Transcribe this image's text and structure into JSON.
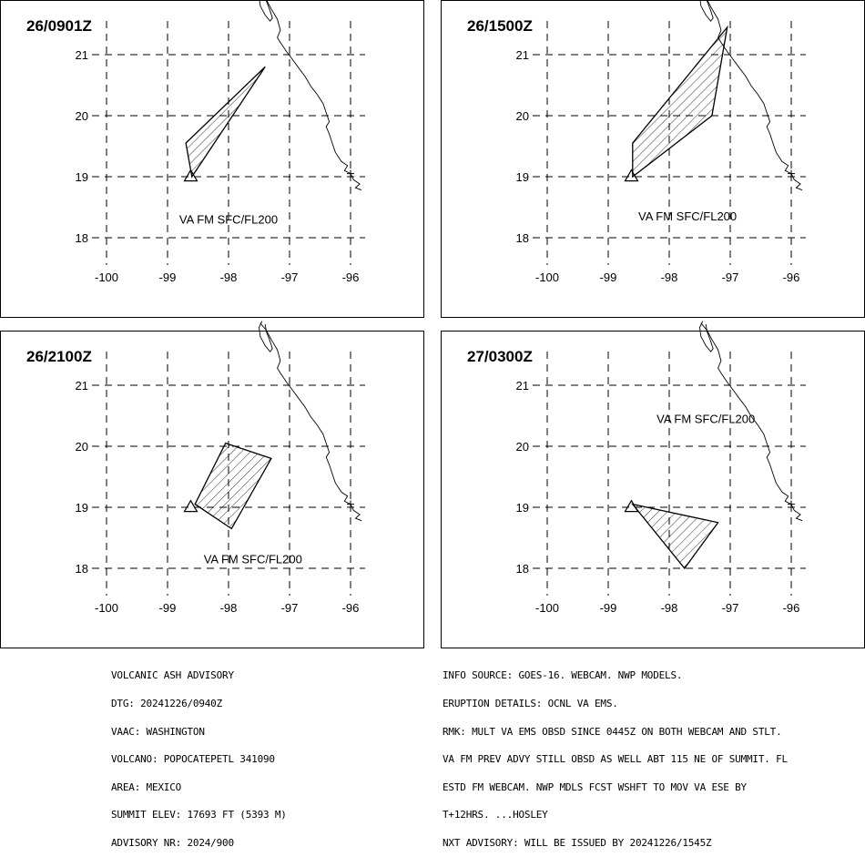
{
  "panels": [
    {
      "time": "26/0901Z",
      "label": "VA FM SFC/FL200",
      "polygon": [
        [
          -98.6,
          19.0
        ],
        [
          -98.7,
          19.55
        ],
        [
          -97.4,
          20.8
        ]
      ]
    },
    {
      "time": "26/1500Z",
      "label": "VA FM SFC/FL200",
      "polygon": [
        [
          -98.6,
          19.0
        ],
        [
          -98.6,
          19.55
        ],
        [
          -97.05,
          21.45
        ],
        [
          -97.3,
          20.0
        ]
      ]
    },
    {
      "time": "26/2100Z",
      "label": "VA FM SFC/FL200",
      "polygon": [
        [
          -98.55,
          19.05
        ],
        [
          -98.05,
          20.05
        ],
        [
          -97.3,
          19.8
        ],
        [
          -97.95,
          18.65
        ]
      ]
    },
    {
      "time": "27/0300Z",
      "label": "VA FM SFC/FL200",
      "polygon": [
        [
          -98.6,
          19.05
        ],
        [
          -97.2,
          18.75
        ],
        [
          -97.75,
          18.0
        ]
      ]
    }
  ],
  "axes": {
    "lon_ticks": [
      "-100",
      "-99",
      "-98",
      "-97",
      "-96"
    ],
    "lat_ticks": [
      "21",
      "20",
      "19",
      "18"
    ]
  },
  "volcano": {
    "lon": -98.62,
    "lat": 19.02
  },
  "advisory_left": [
    "VOLCANIC ASH ADVISORY",
    "DTG: 20241226/0940Z",
    "VAAC: WASHINGTON",
    "VOLCANO: POPOCATEPETL 341090",
    "AREA: MEXICO",
    "SUMMIT ELEV: 17693 FT (5393 M)",
    "ADVISORY NR: 2024/900"
  ],
  "advisory_right": [
    "INFO SOURCE: GOES-16. WEBCAM. NWP MODELS.",
    "ERUPTION DETAILS: OCNL VA EMS.",
    "RMK: MULT VA EMS OBSD SINCE 0445Z ON BOTH WEBCAM AND STLT.",
    "VA FM PREV ADVY STILL OBSD AS WELL ABT 115 NE OF SUMMIT. FL",
    "ESTD FM WEBCAM. NWP MDLS FCST WSHFT TO MOV VA ESE BY",
    "T+12HRS. ...HOSLEY",
    "NXT ADVISORY: WILL BE ISSUED BY 20241226/1545Z"
  ]
}
